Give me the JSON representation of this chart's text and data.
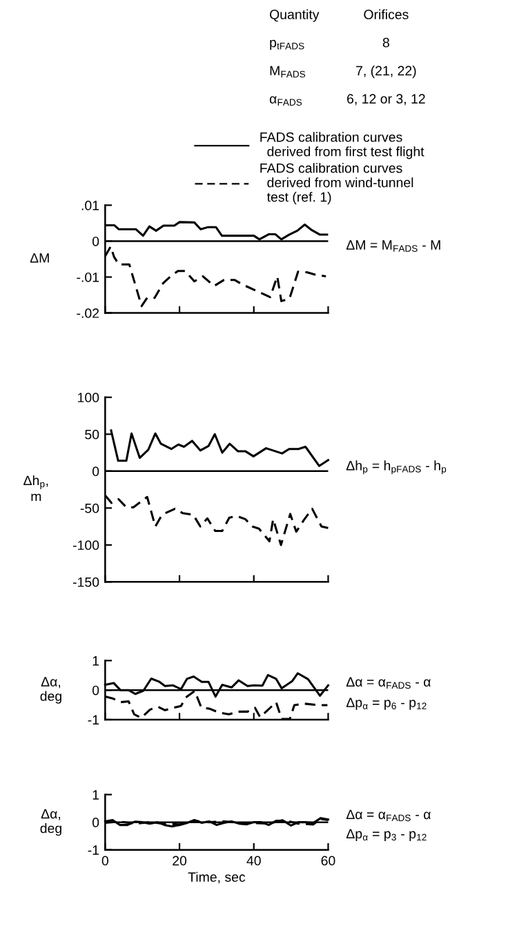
{
  "chart_data": [
    {
      "type": "line",
      "x": [
        0.2,
        2.5,
        3.7,
        8.3,
        10.2,
        11.9,
        13.7,
        15.7,
        18.6,
        20.0,
        24.0,
        25.7,
        27.7,
        29.8,
        31.4,
        40.0,
        41.5,
        44.0,
        45.8,
        47.4,
        49.5,
        51.7,
        53.7,
        55.4,
        57.8,
        59.7
      ],
      "series": [
        {
          "name": "FADS calibration curves\n  derived from first test flight",
          "color": "#000000",
          "line_style": "solid",
          "values": [
            0.0044,
            0.0044,
            0.0033,
            0.0033,
            0.0015,
            0.0041,
            0.0029,
            0.0043,
            0.0043,
            0.0053,
            0.0052,
            0.0033,
            0.0039,
            0.0039,
            0.0015,
            0.0015,
            0.0005,
            0.0019,
            0.0019,
            0.0005,
            0.0018,
            0.0029,
            0.0046,
            0.0032,
            0.0018,
            0.0018
          ]
        },
        {
          "name": "FADS calibration curves\n  derived from wind-tunnel\n  test (ref. 1)",
          "color": "#000000",
          "line_style": "dashed",
          "x": [
            0,
            1.5,
            2.4,
            3.7,
            6.5,
            9.8,
            11.3,
            13.3,
            15.6,
            17.6,
            19.6,
            21.5,
            24.0,
            26.3,
            29.3,
            32.0,
            34.8,
            37.0,
            44.4,
            46.3,
            47.4,
            49.6,
            51.9,
            54.4,
            56.7,
            59.4
          ],
          "values": [
            -0.0042,
            -0.0015,
            -0.0044,
            -0.0065,
            -0.0065,
            -0.0181,
            -0.0158,
            -0.0158,
            -0.0117,
            -0.0098,
            -0.0083,
            -0.0083,
            -0.0112,
            -0.0098,
            -0.0125,
            -0.0108,
            -0.0108,
            -0.0121,
            -0.0156,
            -0.0098,
            -0.0167,
            -0.016,
            -0.0085,
            -0.0087,
            -0.0094,
            -0.0098
          ]
        }
      ],
      "ylabel": "ΔM",
      "xlim": [
        0,
        60
      ],
      "xticks": [
        {
          "value": 0,
          "label": null
        },
        {
          "value": 20,
          "label": null
        },
        {
          "value": 40,
          "label": null
        },
        {
          "value": 60,
          "label": null
        }
      ],
      "ylim": [
        -0.02,
        0.01
      ],
      "yticks": [
        {
          "value": -0.02,
          "label": "-.02"
        },
        {
          "value": -0.01,
          "label": "-.01"
        },
        {
          "value": 0,
          "label": "0"
        },
        {
          "value": 0.01,
          "label": ".01"
        }
      ],
      "tick_labels": "y",
      "grid": false,
      "marker": "none",
      "legend": "top right",
      "ref_lines": [
        {
          "axis": "y",
          "value": 0,
          "color": "#000000"
        }
      ],
      "annotations": [
        "Quantity",
        "Orifices",
        "p$_{tFADS}$",
        "8",
        "M$_{FADS}$",
        "7, (21, 22)",
        "α$_{FADS}$",
        "6, 12 or 3, 12",
        "ΔM = M$_{FADS}$ - M"
      ]
    },
    {
      "type": "line",
      "x": [
        1.6,
        3.5,
        5.7,
        7.1,
        9.3,
        11.6,
        13.5,
        15.0,
        17.8,
        19.7,
        21.2,
        23.4,
        25.6,
        27.8,
        29.5,
        31.5,
        33.5,
        35.7,
        37.7,
        39.9,
        43.3,
        47.6,
        49.5,
        52.0,
        53.9,
        57.6,
        60.0
      ],
      "series": [
        {
          "color": "#000000",
          "line_style": "solid",
          "values": [
            55,
            14,
            14,
            51,
            18,
            29,
            51,
            37,
            30,
            36,
            33,
            41,
            28,
            34,
            50,
            25,
            37,
            27,
            27,
            20,
            31,
            24,
            30,
            30,
            33,
            7,
            15
          ]
        },
        {
          "color": "#000000",
          "line_style": "dashed",
          "x": [
            0,
            1.7,
            3.6,
            5.7,
            7.6,
            11.3,
            13.5,
            15.3,
            18.8,
            20.9,
            23.7,
            25.6,
            27.5,
            29.6,
            31.5,
            33.4,
            35.5,
            37.7,
            39.6,
            41.4,
            44.2,
            45.2,
            47.3,
            49.8,
            51.4,
            53.5,
            55.7,
            58.2,
            60.0
          ],
          "values": [
            -33,
            -43,
            -38,
            -49,
            -49,
            -35,
            -75,
            -59,
            -51,
            -57,
            -59,
            -75,
            -64,
            -81,
            -81,
            -63,
            -61,
            -65,
            -75,
            -78,
            -95,
            -65,
            -100,
            -58,
            -82,
            -66,
            -51,
            -75,
            -77
          ]
        }
      ],
      "ylabel": "Δh$_{p}$,\nm",
      "xlim": [
        0,
        60
      ],
      "xticks": [
        {
          "value": 0,
          "label": null
        },
        {
          "value": 20,
          "label": null
        },
        {
          "value": 40,
          "label": null
        },
        {
          "value": 60,
          "label": null
        }
      ],
      "ylim": [
        -150,
        100
      ],
      "yticks": [
        -150,
        -100,
        -50,
        0,
        50,
        100
      ],
      "tick_labels": "y",
      "grid": false,
      "marker": "none",
      "ref_lines": [
        {
          "axis": "y",
          "value": 0,
          "color": "#000000"
        }
      ],
      "annotations": [
        "Δh$_{p}$ = h$_{pFADS}$ - h$_{p}$"
      ]
    },
    {
      "type": "line",
      "x": [
        0,
        2.3,
        4.1,
        6.3,
        8.1,
        10.3,
        12.4,
        14.6,
        16.1,
        18.3,
        20.4,
        22.0,
        23.8,
        26.0,
        27.8,
        29.7,
        31.5,
        34.0,
        35.9,
        38.3,
        40.1,
        42.3,
        43.8,
        46.0,
        47.5,
        50.3,
        51.8,
        54.6,
        56.7,
        57.8,
        60.0
      ],
      "series": [
        {
          "color": "#000000",
          "line_style": "solid",
          "values": [
            0.18,
            0.24,
            0,
            0,
            -0.13,
            -0.02,
            0.39,
            0.28,
            0.14,
            0.16,
            0.03,
            0.38,
            0.46,
            0.28,
            0.28,
            -0.22,
            0.18,
            0.09,
            0.33,
            0.14,
            0.16,
            0.15,
            0.51,
            0.38,
            0.06,
            0.3,
            0.57,
            0.37,
            0,
            -0.19,
            0.16
          ]
        },
        {
          "color": "#000000",
          "line_style": "dashed",
          "x": [
            0,
            2.0,
            4.1,
            6.3,
            7.8,
            9.7,
            12.1,
            14.3,
            16.1,
            18.3,
            20.4,
            21.7,
            24.1,
            25.9,
            28.1,
            30.6,
            33.3,
            35.8,
            38.3,
            40.3,
            41.7,
            46.0,
            47.5,
            49.7,
            50.9,
            53.7,
            57.4,
            59.8
          ],
          "values": [
            -0.22,
            -0.28,
            -0.41,
            -0.38,
            -0.82,
            -0.94,
            -0.66,
            -0.57,
            -0.68,
            -0.6,
            -0.54,
            -0.25,
            -0.03,
            -0.6,
            -0.63,
            -0.76,
            -0.82,
            -0.73,
            -0.73,
            -0.6,
            -0.92,
            -0.41,
            -0.98,
            -0.98,
            -0.51,
            -0.46,
            -0.51,
            -0.51
          ]
        }
      ],
      "ylabel": "Δα,\ndeg",
      "xlim": [
        0,
        60
      ],
      "xticks": [
        {
          "value": 0,
          "label": null
        },
        {
          "value": 20,
          "label": null
        },
        {
          "value": 40,
          "label": null
        },
        {
          "value": 60,
          "label": null
        }
      ],
      "ylim": [
        -1,
        1
      ],
      "yticks": [
        -1,
        0,
        1
      ],
      "tick_labels": "y",
      "grid": false,
      "marker": "none",
      "ref_lines": [
        {
          "axis": "y",
          "value": 0,
          "color": "#000000"
        }
      ],
      "annotations": [
        "Δα = α$_{FADS}$ - α",
        "Δp$_{α}$ = p$_{6}$ - p$_{12}$"
      ]
    },
    {
      "type": "line",
      "x": [
        0,
        2,
        4,
        6,
        8,
        10,
        12,
        14,
        16,
        18,
        20,
        22,
        24,
        26,
        28,
        30,
        32,
        34,
        36,
        38,
        40,
        42,
        44,
        46,
        48,
        50,
        52,
        54,
        56,
        58,
        60
      ],
      "series": [
        {
          "color": "#000000",
          "line_style": "solid",
          "values": [
            0.03,
            0.08,
            -0.1,
            -0.1,
            0.02,
            0,
            -0.05,
            0,
            -0.1,
            -0.15,
            -0.1,
            -0.03,
            0.08,
            -0.02,
            0.03,
            -0.1,
            -0.02,
            0.03,
            -0.05,
            -0.08,
            0,
            0,
            -0.1,
            0.05,
            0.05,
            -0.12,
            0,
            0,
            -0.03,
            0.15,
            0.1
          ]
        },
        {
          "color": "#000000",
          "line_style": "dashed",
          "x": [
            0,
            4,
            8,
            12,
            16,
            20,
            24,
            28,
            32,
            36,
            40,
            44,
            48,
            52,
            56,
            58,
            60
          ],
          "values": [
            -0.02,
            0.02,
            -0.05,
            0,
            -0.05,
            -0.08,
            0.05,
            0,
            0.03,
            -0.02,
            -0.03,
            -0.05,
            0.08,
            -0.05,
            -0.08,
            0.12,
            0.08
          ]
        }
      ],
      "ylabel": "Δα,\ndeg",
      "xlabel": "Time, sec",
      "xlim": [
        0,
        60
      ],
      "xticks": [
        0,
        20,
        40,
        60
      ],
      "ylim": [
        -1,
        1
      ],
      "yticks": [
        -1,
        0,
        1
      ],
      "grid": false,
      "marker": "none",
      "ref_lines": [
        {
          "axis": "y",
          "value": 0,
          "color": "#000000"
        }
      ],
      "annotations": [
        "Δα = α$_{FADS}$ - α",
        "Δp$_{α}$ = p$_{3}$ - p$_{12}$"
      ]
    }
  ]
}
